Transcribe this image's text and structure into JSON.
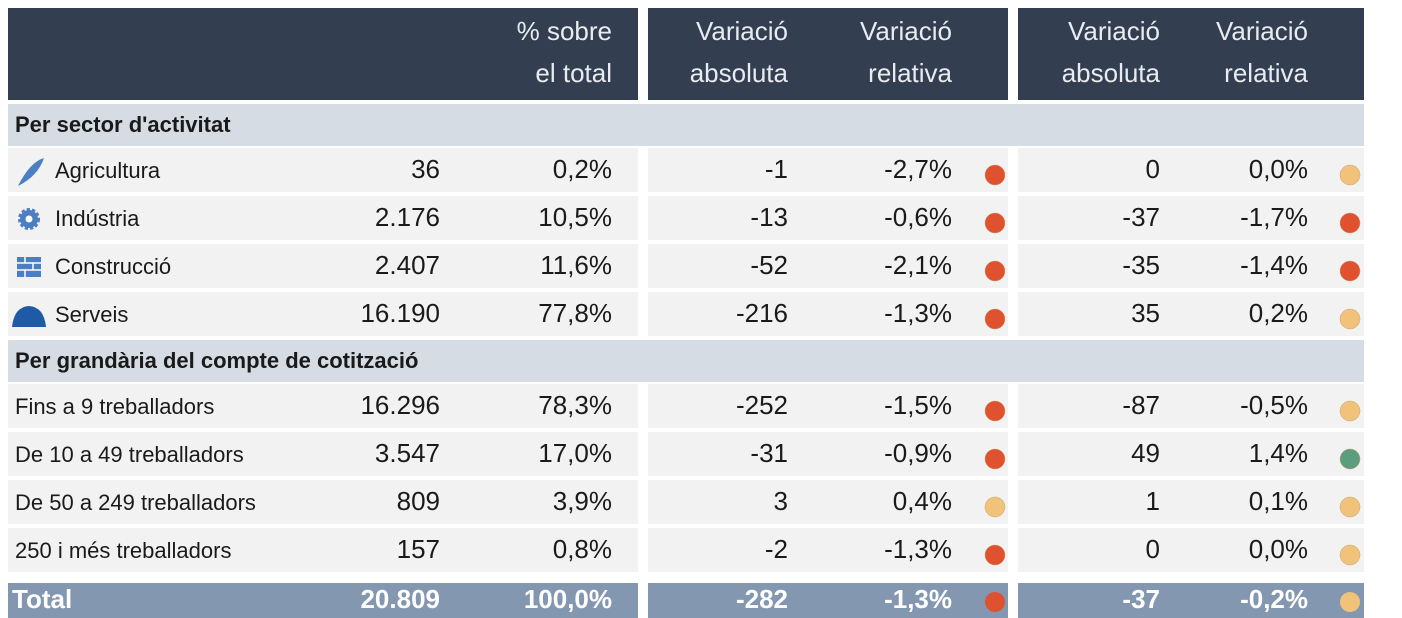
{
  "header": {
    "columns": [
      [
        "% sobre",
        "el total"
      ],
      [
        "Variació",
        "absoluta"
      ],
      [
        "Variació",
        "relativa"
      ],
      [
        "Variació",
        "absoluta"
      ],
      [
        "Variació",
        "relativa"
      ]
    ]
  },
  "sections": [
    {
      "title": "Per sector d'activitat",
      "rows": [
        {
          "label": "Agricultura",
          "cells": [
            "36",
            "0,2%",
            "-1",
            "-2,7%",
            "0",
            "0,0%"
          ],
          "dots": [
            "#e0522f",
            "#f0c27a"
          ]
        },
        {
          "label": "Indústria",
          "cells": [
            "2.176",
            "10,5%",
            "-13",
            "-0,6%",
            "-37",
            "-1,7%"
          ],
          "dots": [
            "#e0522f",
            "#e0522f"
          ]
        },
        {
          "label": "Construcció",
          "cells": [
            "2.407",
            "11,6%",
            "-52",
            "-2,1%",
            "-35",
            "-1,4%"
          ],
          "dots": [
            "#e0522f",
            "#e0522f"
          ]
        },
        {
          "label": "Serveis",
          "cells": [
            "16.190",
            "77,8%",
            "-216",
            "-1,3%",
            "35",
            "0,2%"
          ],
          "dots": [
            "#e0522f",
            "#f0c27a"
          ]
        }
      ]
    },
    {
      "title": "Per grandària del compte de cotització",
      "rows": [
        {
          "label": "Fins a 9 treballadors",
          "cells": [
            "16.296",
            "78,3%",
            "-252",
            "-1,5%",
            "-87",
            "-0,5%"
          ],
          "dots": [
            "#e0522f",
            "#f0c27a"
          ]
        },
        {
          "label": "De 10 a 49 treballadors",
          "cells": [
            "3.547",
            "17,0%",
            "-31",
            "-0,9%",
            "49",
            "1,4%"
          ],
          "dots": [
            "#e0522f",
            "#5a9e7f"
          ]
        },
        {
          "label": "De 50 a 249 treballadors",
          "cells": [
            "809",
            "3,9%",
            "3",
            "0,4%",
            "1",
            "0,1%"
          ],
          "dots": [
            "#f0c27a",
            "#f0c27a"
          ]
        },
        {
          "label": "250 i més treballadors",
          "cells": [
            "157",
            "0,8%",
            "-2",
            "-1,3%",
            "0",
            "0,0%"
          ],
          "dots": [
            "#e0522f",
            "#f0c27a"
          ]
        }
      ]
    }
  ],
  "total": {
    "label": "Total",
    "cells": [
      "20.809",
      "100,0%",
      "-282",
      "-1,3%",
      "-37",
      "-0,2%"
    ],
    "dots": [
      "#e0522f",
      "#f0c27a"
    ]
  }
}
